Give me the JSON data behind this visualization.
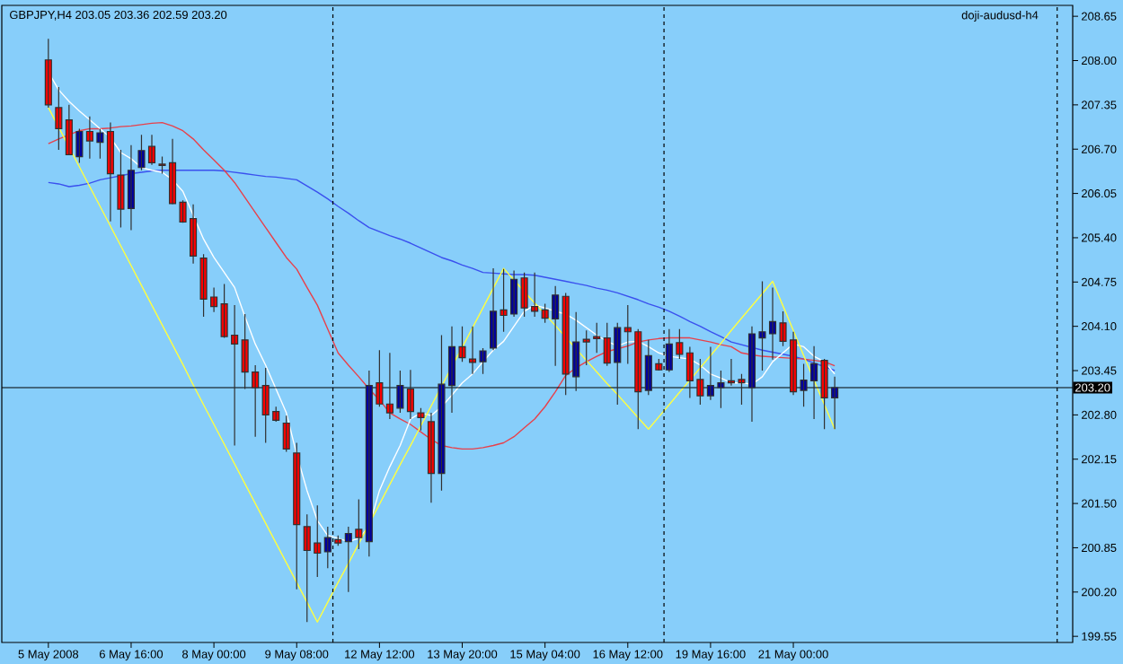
{
  "chart_data": {
    "type": "candlestick",
    "title": "GBPJPY,H4 203.05 203.36 202.59 203.20",
    "annotations": [
      "doji-audusd-h4"
    ],
    "categories": [
      "5 May 2008",
      null,
      null,
      null,
      null,
      null,
      null,
      null,
      "6 May 16:00",
      null,
      null,
      null,
      null,
      null,
      null,
      null,
      "8 May 00:00",
      null,
      null,
      null,
      null,
      null,
      null,
      null,
      "9 May 08:00",
      null,
      null,
      null,
      null,
      null,
      null,
      null,
      "12 May 12:00",
      null,
      null,
      null,
      null,
      null,
      null,
      null,
      "13 May 20:00",
      null,
      null,
      null,
      null,
      null,
      null,
      null,
      "15 May 04:00",
      null,
      null,
      null,
      null,
      null,
      null,
      null,
      "16 May 12:00",
      null,
      null,
      null,
      null,
      null,
      null,
      null,
      "19 May 16:00",
      null,
      null,
      null,
      null,
      null,
      null,
      null,
      "21 May 00:00",
      null,
      null,
      null,
      null
    ],
    "ohlc": [
      [
        208.01,
        208.32,
        207.31,
        207.35
      ],
      [
        207.31,
        207.61,
        206.69,
        207.0
      ],
      [
        207.13,
        207.35,
        206.61,
        206.62
      ],
      [
        206.59,
        207.0,
        206.5,
        206.96
      ],
      [
        206.96,
        207.18,
        206.56,
        206.82
      ],
      [
        206.8,
        207.0,
        206.56,
        206.94
      ],
      [
        206.96,
        207.09,
        205.64,
        206.34
      ],
      [
        206.32,
        206.69,
        205.55,
        205.82
      ],
      [
        205.83,
        206.76,
        205.51,
        206.39
      ],
      [
        206.43,
        206.91,
        206.39,
        206.68
      ],
      [
        206.74,
        206.91,
        206.47,
        206.5
      ],
      [
        206.48,
        206.59,
        206.34,
        206.46
      ],
      [
        206.5,
        206.85,
        205.89,
        205.9
      ],
      [
        205.92,
        205.95,
        205.62,
        205.63
      ],
      [
        205.68,
        205.89,
        205.02,
        205.13
      ],
      [
        205.1,
        205.16,
        204.24,
        204.5
      ],
      [
        204.53,
        204.67,
        204.31,
        204.39
      ],
      [
        204.43,
        204.72,
        203.93,
        203.95
      ],
      [
        203.97,
        204.41,
        202.35,
        203.84
      ],
      [
        203.9,
        204.28,
        203.18,
        203.43
      ],
      [
        203.43,
        203.53,
        202.48,
        203.2
      ],
      [
        203.23,
        203.49,
        202.39,
        202.8
      ],
      [
        202.85,
        202.92,
        202.7,
        202.72
      ],
      [
        202.68,
        202.79,
        202.26,
        202.3
      ],
      [
        202.24,
        202.39,
        200.24,
        201.19
      ],
      [
        201.16,
        201.34,
        199.76,
        200.81
      ],
      [
        200.92,
        201.47,
        200.42,
        200.77
      ],
      [
        200.79,
        201.16,
        200.55,
        201.0
      ],
      [
        200.97,
        201.03,
        200.88,
        200.92
      ],
      [
        200.94,
        201.16,
        200.2,
        201.06
      ],
      [
        201.12,
        201.56,
        200.83,
        201.0
      ],
      [
        200.94,
        203.45,
        200.72,
        203.23
      ],
      [
        203.27,
        203.75,
        202.92,
        202.96
      ],
      [
        202.96,
        203.71,
        202.74,
        202.83
      ],
      [
        202.9,
        203.45,
        202.83,
        203.23
      ],
      [
        203.18,
        203.46,
        202.74,
        202.85
      ],
      [
        202.83,
        202.9,
        202.57,
        202.76
      ],
      [
        202.7,
        202.83,
        201.51,
        201.94
      ],
      [
        201.94,
        203.97,
        201.69,
        203.25
      ],
      [
        203.23,
        204.1,
        202.83,
        203.8
      ],
      [
        203.8,
        204.1,
        203.58,
        203.64
      ],
      [
        203.62,
        204.1,
        203.4,
        203.57
      ],
      [
        203.58,
        203.78,
        203.4,
        203.74
      ],
      [
        203.78,
        204.95,
        203.75,
        204.32
      ],
      [
        204.34,
        204.94,
        204.02,
        204.26
      ],
      [
        204.28,
        204.92,
        204.24,
        204.79
      ],
      [
        204.81,
        204.89,
        204.24,
        204.37
      ],
      [
        204.39,
        204.89,
        204.24,
        204.32
      ],
      [
        204.34,
        204.43,
        204.15,
        204.22
      ],
      [
        204.21,
        204.69,
        203.52,
        204.56
      ],
      [
        204.54,
        204.59,
        203.09,
        203.4
      ],
      [
        203.36,
        204.31,
        203.15,
        203.87
      ],
      [
        203.91,
        204.04,
        203.53,
        203.87
      ],
      [
        203.95,
        204.15,
        203.71,
        203.92
      ],
      [
        203.93,
        204.15,
        203.52,
        203.56
      ],
      [
        203.57,
        204.15,
        202.95,
        204.08
      ],
      [
        204.08,
        204.41,
        203.55,
        204.02
      ],
      [
        204.02,
        204.06,
        202.59,
        203.14
      ],
      [
        203.16,
        203.9,
        203.09,
        203.67
      ],
      [
        203.55,
        203.62,
        203.45,
        203.46
      ],
      [
        203.46,
        204.06,
        203.43,
        203.84
      ],
      [
        203.86,
        204.06,
        203.62,
        203.69
      ],
      [
        203.71,
        203.8,
        203.05,
        203.3
      ],
      [
        203.32,
        203.62,
        202.95,
        203.08
      ],
      [
        203.08,
        203.8,
        203.02,
        203.23
      ],
      [
        203.2,
        203.45,
        202.9,
        203.27
      ],
      [
        203.3,
        203.62,
        203.23,
        203.27
      ],
      [
        203.32,
        203.4,
        202.95,
        203.27
      ],
      [
        203.2,
        204.1,
        202.7,
        203.99
      ],
      [
        203.93,
        204.76,
        203.45,
        204.02
      ],
      [
        203.99,
        204.67,
        203.61,
        204.17
      ],
      [
        204.15,
        204.32,
        203.81,
        203.88
      ],
      [
        203.9,
        204.02,
        203.09,
        203.14
      ],
      [
        203.16,
        203.55,
        202.92,
        203.31
      ],
      [
        203.3,
        203.81,
        202.74,
        203.55
      ],
      [
        203.6,
        203.62,
        202.59,
        203.05
      ],
      [
        203.05,
        203.36,
        202.59,
        203.2
      ]
    ],
    "colors": [
      "#ff0000",
      "#ff0000",
      "#ff0000",
      "#0000a0",
      "#ff0000",
      "#0000a0",
      "#ff0000",
      "#ff0000",
      "#0000a0",
      "#0000a0",
      "#ff0000",
      "#ff0000",
      "#ff0000",
      "#ff0000",
      "#ff0000",
      "#ff0000",
      "#ff0000",
      "#ff0000",
      "#ff0000",
      "#ff0000",
      "#ff0000",
      "#ff0000",
      "#ff0000",
      "#ff0000",
      "#ff0000",
      "#ff0000",
      "#ff0000",
      "#0000a0",
      "#ff0000",
      "#0000a0",
      "#ff0000",
      "#0000a0",
      "#ff0000",
      "#ff0000",
      "#0000a0",
      "#ff0000",
      "#ff0000",
      "#ff0000",
      "#0000a0",
      "#0000a0",
      "#ff0000",
      "#ff0000",
      "#0000a0",
      "#0000a0",
      "#ff0000",
      "#0000a0",
      "#ff0000",
      "#ff0000",
      "#ff0000",
      "#0000a0",
      "#ff0000",
      "#0000a0",
      "#ff0000",
      "#ff0000",
      "#ff0000",
      "#0000a0",
      "#ff0000",
      "#ff0000",
      "#0000a0",
      "#ff0000",
      "#0000a0",
      "#ff0000",
      "#ff0000",
      "#ff0000",
      "#0000a0",
      "#0000a0",
      "#ff0000",
      "#ff0000",
      "#0000a0",
      "#0000a0",
      "#0000a0",
      "#ff0000",
      "#ff0000",
      "#0000a0",
      "#0000a0",
      "#ff0000",
      "#0000a0"
    ],
    "series": [
      {
        "type": "line",
        "color": "#3a50ee",
        "values": [
          206.21,
          206.19,
          206.15,
          206.17,
          206.2,
          206.25,
          206.28,
          206.31,
          206.34,
          206.36,
          206.38,
          206.39,
          206.39,
          206.39,
          206.39,
          206.39,
          206.39,
          206.38,
          206.36,
          206.34,
          206.32,
          206.3,
          206.29,
          206.27,
          206.25,
          206.16,
          206.07,
          205.97,
          205.86,
          205.76,
          205.65,
          205.55,
          205.49,
          205.43,
          205.38,
          205.32,
          205.25,
          205.18,
          205.11,
          205.06,
          205.0,
          204.95,
          204.89,
          204.88,
          204.87,
          204.86,
          204.86,
          204.85,
          204.82,
          204.79,
          204.76,
          204.73,
          204.7,
          204.66,
          204.63,
          204.59,
          204.54,
          204.49,
          204.43,
          204.38,
          204.32,
          204.25,
          204.17,
          204.1,
          204.02,
          203.95,
          203.87,
          203.83,
          203.79,
          203.75,
          203.72,
          203.69,
          203.66,
          203.62,
          203.56,
          203.51,
          203.45
        ]
      },
      {
        "type": "line",
        "color": "#e8404a",
        "values": [
          206.78,
          206.85,
          206.91,
          206.97,
          207.0,
          207.0,
          207.01,
          207.03,
          207.04,
          207.06,
          207.08,
          207.09,
          207.04,
          206.97,
          206.85,
          206.69,
          206.54,
          206.39,
          206.21,
          205.99,
          205.77,
          205.55,
          205.33,
          205.11,
          204.94,
          204.67,
          204.41,
          204.06,
          203.71,
          203.53,
          203.36,
          203.18,
          203.02,
          202.83,
          202.74,
          202.66,
          202.55,
          202.44,
          202.35,
          202.32,
          202.3,
          202.3,
          202.32,
          202.35,
          202.39,
          202.48,
          202.61,
          202.74,
          202.92,
          203.14,
          203.38,
          203.49,
          203.58,
          203.66,
          203.73,
          203.77,
          203.81,
          203.87,
          203.9,
          203.92,
          203.93,
          203.93,
          203.93,
          203.9,
          203.87,
          203.83,
          203.8,
          203.71,
          203.68,
          203.66,
          203.65,
          203.64,
          203.63,
          203.62,
          203.6,
          203.58,
          203.52
        ]
      },
      {
        "type": "line",
        "color": "#ffffff",
        "values": [
          207.83,
          207.57,
          207.4,
          207.26,
          207.13,
          207.0,
          206.87,
          206.65,
          206.56,
          206.43,
          206.39,
          206.36,
          206.25,
          206.08,
          205.73,
          205.38,
          205.11,
          204.89,
          204.67,
          204.24,
          203.84,
          203.53,
          203.18,
          202.83,
          202.22,
          201.69,
          201.25,
          201.03,
          200.99,
          200.94,
          200.99,
          201.16,
          201.69,
          202.04,
          202.35,
          202.74,
          202.83,
          202.79,
          202.92,
          203.09,
          203.27,
          203.4,
          203.58,
          203.75,
          203.88,
          204.1,
          204.32,
          204.41,
          204.37,
          204.32,
          204.28,
          204.19,
          204.08,
          203.97,
          203.88,
          203.81,
          203.87,
          203.88,
          203.8,
          203.71,
          203.66,
          203.64,
          203.62,
          203.53,
          203.4,
          203.34,
          203.27,
          203.27,
          203.25,
          203.36,
          203.58,
          203.71,
          203.84,
          203.8,
          203.66,
          203.58,
          203.4
        ]
      },
      {
        "type": "line",
        "color": "#ffff40",
        "values": [
          207.31,
          207.02,
          206.73,
          206.44,
          206.15,
          205.86,
          205.57,
          205.28,
          204.99,
          204.7,
          204.41,
          204.12,
          203.83,
          203.54,
          203.24,
          202.95,
          202.66,
          202.37,
          202.08,
          201.79,
          201.5,
          201.21,
          200.92,
          200.63,
          200.34,
          200.05,
          199.76,
          200.05,
          200.34,
          200.62,
          200.91,
          201.2,
          201.49,
          201.78,
          202.07,
          202.35,
          202.64,
          202.93,
          203.22,
          203.51,
          203.79,
          204.08,
          204.37,
          204.66,
          204.95,
          204.78,
          204.61,
          204.44,
          204.28,
          204.11,
          203.94,
          203.77,
          203.6,
          203.43,
          203.26,
          203.1,
          202.93,
          202.76,
          202.59,
          202.77,
          202.95,
          203.13,
          203.31,
          203.49,
          203.67,
          203.85,
          204.04,
          204.22,
          204.4,
          204.58,
          204.76,
          204.4,
          204.04,
          203.67,
          203.31,
          202.95,
          202.59
        ]
      }
    ],
    "marker": "none",
    "line_style": "solid",
    "ref_lines": [
      {
        "axis": "y",
        "value": 203.2,
        "label": "203.20",
        "color": "#000000",
        "line_style": "solid"
      }
    ],
    "ylim": [
      199.46,
      208.81
    ],
    "yticks": [
      199.55,
      {
        "value": 200.2,
        "label": "200.20"
      },
      200.85,
      {
        "value": 201.5,
        "label": "201.50"
      },
      202.15,
      {
        "value": 202.8,
        "label": "202.80"
      },
      203.45,
      {
        "value": 204.1,
        "label": "204.10"
      },
      204.75,
      {
        "value": 205.4,
        "label": "205.40"
      },
      206.05,
      {
        "value": 206.7,
        "label": "206.70"
      },
      207.35,
      {
        "value": 208.0,
        "label": "208.00"
      },
      208.65
    ]
  }
}
